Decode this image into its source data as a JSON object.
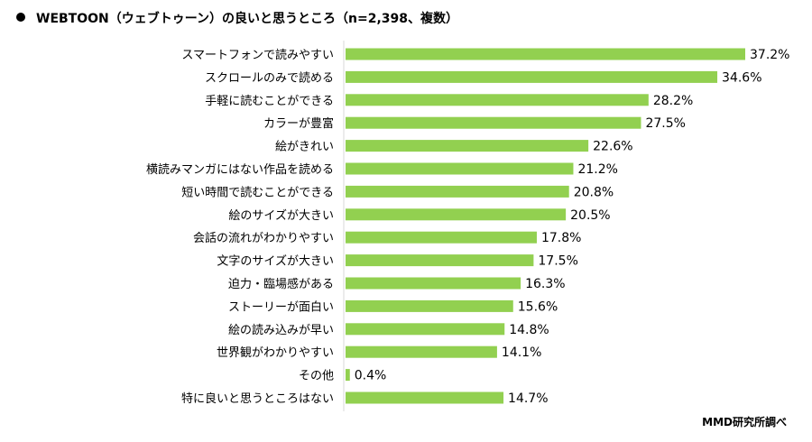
{
  "title": "WEBTOON（ウェブトゥーン）の良いと思うところ（n=2,398、複数）",
  "source": "MMD研究所調べ",
  "chart_data": {
    "type": "bar",
    "orientation": "horizontal",
    "title": "WEBTOON（ウェブトゥーン）の良いと思うところ（n=2,398、複数）",
    "categories": [
      "スマートフォンで読みやすい",
      "スクロールのみで読める",
      "手軽に読むことができる",
      "カラーが豊富",
      "絵がきれい",
      "横読みマンガにはない作品を読める",
      "短い時間で読むことができる",
      "絵のサイズが大きい",
      "会話の流れがわかりやすい",
      "文字のサイズが大きい",
      "迫力・臨場感がある",
      "ストーリーが面白い",
      "絵の読み込みが早い",
      "世界観がわかりやすい",
      "その他",
      "特に良いと思うところはない"
    ],
    "values": [
      37.2,
      34.6,
      28.2,
      27.5,
      22.6,
      21.2,
      20.8,
      20.5,
      17.8,
      17.5,
      16.3,
      15.6,
      14.8,
      14.1,
      0.4,
      14.7
    ],
    "value_suffix": "%",
    "bar_color": "#92d050",
    "grid": false,
    "legend": "none"
  }
}
